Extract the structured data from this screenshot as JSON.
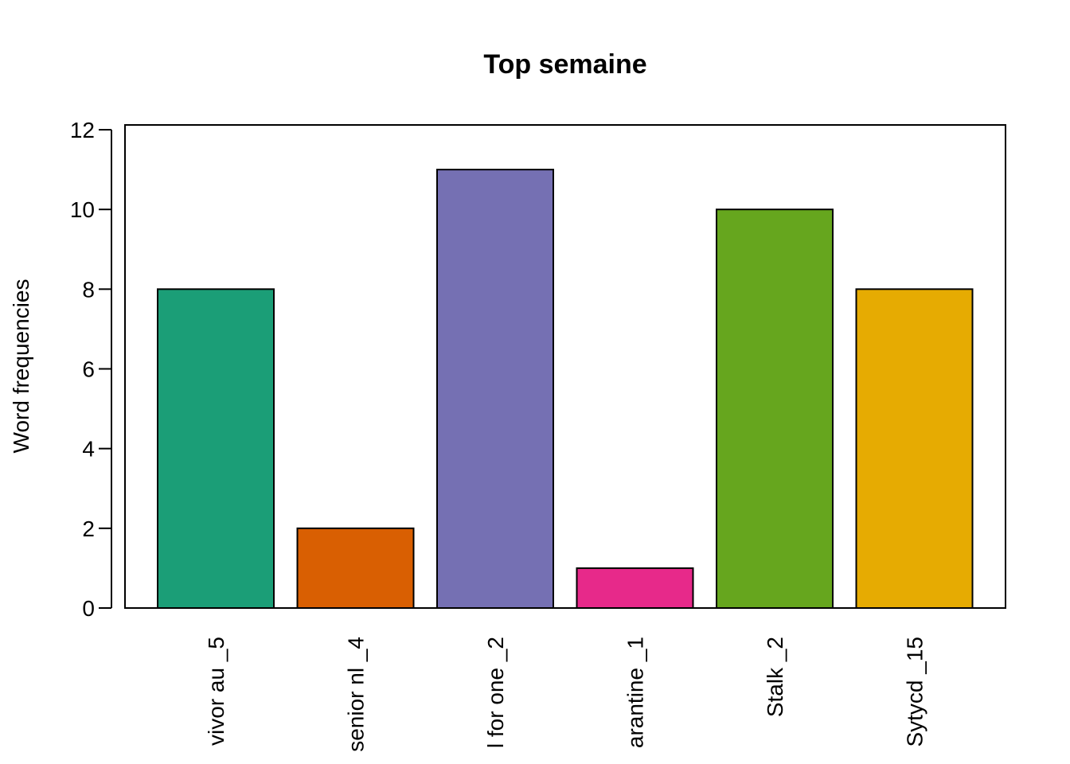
{
  "chart_data": {
    "type": "bar",
    "title": "Top semaine",
    "xlabel": "",
    "ylabel": "Word frequencies",
    "ylim": [
      0,
      12
    ],
    "yticks": [
      0,
      2,
      4,
      6,
      8,
      10,
      12
    ],
    "categories": [
      "vivor au _5",
      "senior nl _4",
      "l for one _2",
      "arantine _1",
      "Stalk _2",
      "Sytycd _15"
    ],
    "values": [
      8,
      2,
      11,
      1,
      10,
      8
    ],
    "colors": [
      "#1B9E77",
      "#D95F02",
      "#7570B3",
      "#E7298A",
      "#66A61E",
      "#E6AB02"
    ],
    "grid": false,
    "legend": "none"
  }
}
